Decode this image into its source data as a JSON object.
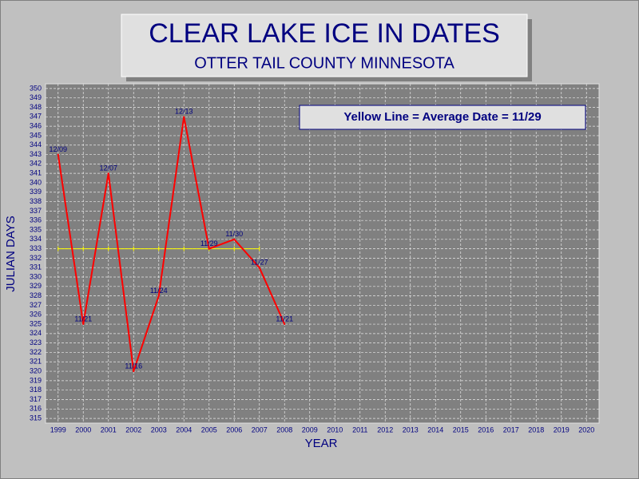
{
  "chart_data": {
    "type": "line",
    "title": "CLEAR LAKE ICE IN DATES",
    "subtitle": "OTTER TAIL COUNTY MINNESOTA",
    "annotation": "Yellow Line = Average Date = 11/29",
    "x_label": "YEAR",
    "y_label": "JULIAN DAYS",
    "categories": [
      "1999",
      "2000",
      "2001",
      "2002",
      "2003",
      "2004",
      "2005",
      "2006",
      "2007",
      "2008",
      "2009",
      "2010",
      "2011",
      "2012",
      "2013",
      "2014",
      "2015",
      "2016",
      "2017",
      "2018",
      "2019",
      "2020"
    ],
    "series": [
      {
        "color": "#ff0000",
        "values": [
          343,
          325,
          341,
          320,
          328,
          347,
          333,
          334,
          331,
          325,
          null,
          null,
          null,
          null,
          null,
          null,
          null,
          null,
          null,
          null,
          null,
          null
        ],
        "value_labels": [
          "12/09",
          "11/21",
          "12/07",
          "11/16",
          "11/24",
          "12/13",
          "11/29",
          "11/30",
          "11/27",
          "11/21",
          null,
          null,
          null,
          null,
          null,
          null,
          null,
          null,
          null,
          null,
          null,
          null
        ]
      },
      {
        "color": "#ffff00",
        "values": [
          333,
          333,
          333,
          333,
          333,
          333,
          333,
          333,
          333,
          null,
          null,
          null,
          null,
          null,
          null,
          null,
          null,
          null,
          null,
          null,
          null,
          null
        ]
      }
    ],
    "ylim": [
      314.5,
      350.5
    ],
    "yticks": [
      315,
      316,
      317,
      318,
      319,
      320,
      321,
      322,
      323,
      324,
      325,
      326,
      327,
      328,
      329,
      330,
      331,
      332,
      333,
      334,
      335,
      336,
      337,
      338,
      339,
      340,
      341,
      342,
      343,
      344,
      345,
      346,
      347,
      348,
      349,
      350
    ],
    "grid": true
  }
}
